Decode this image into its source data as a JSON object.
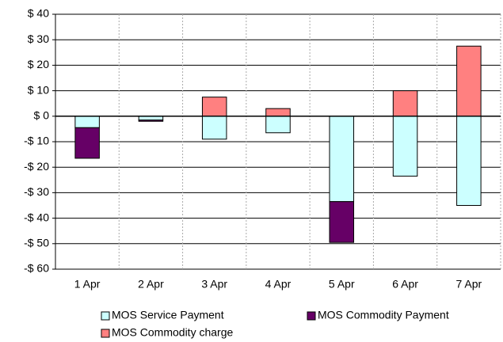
{
  "chart_data": {
    "type": "bar",
    "stacked": true,
    "categories": [
      "1 Apr",
      "2 Apr",
      "3 Apr",
      "4 Apr",
      "5 Apr",
      "6 Apr",
      "7 Apr"
    ],
    "series": [
      {
        "name": "MOS Service Payment",
        "color": "#ccffff",
        "values": [
          -4.5,
          -1.5,
          -9,
          -6.5,
          -33.5,
          -23.5,
          -35
        ]
      },
      {
        "name": "MOS Commodity Payment",
        "color": "#660066",
        "values": [
          -12,
          -0.5,
          0,
          0,
          -16,
          0,
          0
        ]
      },
      {
        "name": "MOS Commodity charge",
        "color": "#ff8080",
        "values": [
          0,
          0,
          7.5,
          3,
          0,
          10,
          27.5
        ]
      }
    ],
    "ylim": [
      -60,
      40
    ],
    "yticks": [
      {
        "value": -60,
        "label": "-$ 60"
      },
      {
        "value": -50,
        "label": "-$ 50"
      },
      {
        "value": -40,
        "label": "-$ 40"
      },
      {
        "value": -30,
        "label": "-$ 30"
      },
      {
        "value": -20,
        "label": "-$ 20"
      },
      {
        "value": -10,
        "label": "-$ 10"
      },
      {
        "value": 0,
        "label": "$ 0"
      },
      {
        "value": 10,
        "label": "$ 10"
      },
      {
        "value": 20,
        "label": "$ 20"
      },
      {
        "value": 30,
        "label": "$ 30"
      },
      {
        "value": 40,
        "label": "$ 40"
      }
    ],
    "grid": true,
    "legend": "bottom"
  }
}
